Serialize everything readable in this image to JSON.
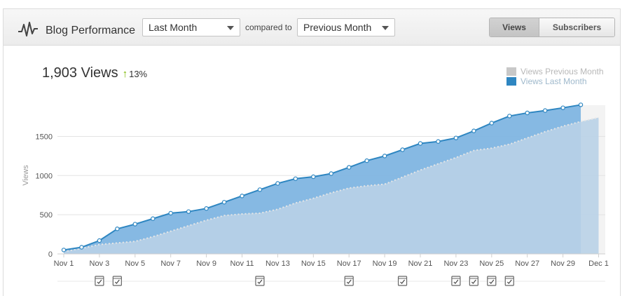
{
  "header": {
    "title": "Blog Performance",
    "range_select": {
      "value": "Last Month"
    },
    "compared_label": "compared to",
    "compare_select": {
      "value": "Previous Month"
    },
    "toggle": {
      "views_label": "Views",
      "subscribers_label": "Subscribers",
      "active": "Views"
    }
  },
  "summary": {
    "total": "1,903 Views",
    "change_arrow": "↑",
    "change": "13%"
  },
  "legend": {
    "previous": "Views Previous Month",
    "last": "Views Last Month"
  },
  "colors": {
    "last_fill": "#7fb5e2",
    "last_line": "#2e86c1",
    "prev_fill": "#b9d2e7",
    "prev_line": "#d6d6d6",
    "up": "#7ab800"
  },
  "post_markers": [
    "Nov 3",
    "Nov 4",
    "Nov 12",
    "Nov 17",
    "Nov 20",
    "Nov 23",
    "Nov 24",
    "Nov 25",
    "Nov 26"
  ],
  "chart_data": {
    "type": "area",
    "ylabel": "Views",
    "ylim": [
      0,
      2000
    ],
    "yticks": [
      0,
      500,
      1000,
      1500
    ],
    "x_tick_labels": [
      "Nov 1",
      "Nov 3",
      "Nov 5",
      "Nov 7",
      "Nov 9",
      "Nov 11",
      "Nov 13",
      "Nov 15",
      "Nov 17",
      "Nov 19",
      "Nov 21",
      "Nov 23",
      "Nov 25",
      "Nov 27",
      "Nov 29",
      "Dec 1"
    ],
    "x": [
      "Nov 1",
      "Nov 2",
      "Nov 3",
      "Nov 4",
      "Nov 5",
      "Nov 6",
      "Nov 7",
      "Nov 8",
      "Nov 9",
      "Nov 10",
      "Nov 11",
      "Nov 12",
      "Nov 13",
      "Nov 14",
      "Nov 15",
      "Nov 16",
      "Nov 17",
      "Nov 18",
      "Nov 19",
      "Nov 20",
      "Nov 21",
      "Nov 22",
      "Nov 23",
      "Nov 24",
      "Nov 25",
      "Nov 26",
      "Nov 27",
      "Nov 28",
      "Nov 29",
      "Nov 30",
      "Dec 1"
    ],
    "series": [
      {
        "name": "Views Last Month",
        "values": [
          50,
          85,
          170,
          320,
          380,
          450,
          520,
          540,
          580,
          660,
          740,
          820,
          900,
          960,
          985,
          1025,
          1105,
          1190,
          1250,
          1330,
          1410,
          1435,
          1480,
          1570,
          1670,
          1760,
          1800,
          1830,
          1865,
          1903,
          null
        ]
      },
      {
        "name": "Views Previous Month",
        "values": [
          30,
          70,
          120,
          140,
          160,
          220,
          290,
          360,
          430,
          490,
          510,
          520,
          570,
          650,
          710,
          780,
          840,
          870,
          890,
          980,
          1070,
          1150,
          1230,
          1320,
          1350,
          1400,
          1480,
          1560,
          1630,
          1690,
          1740
        ]
      }
    ]
  }
}
